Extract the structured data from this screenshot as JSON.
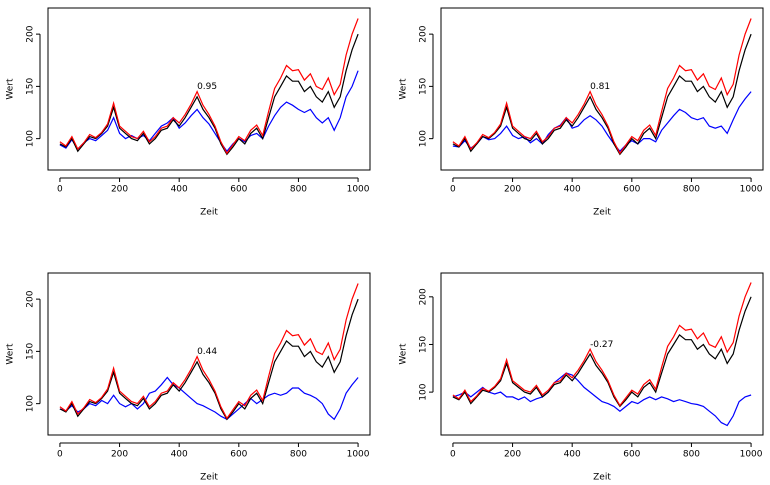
{
  "chart_data": [
    {
      "type": "line",
      "x_label": "Zeit",
      "y_label": "Wert",
      "xlim": [
        -40,
        1040
      ],
      "ylim": [
        70,
        225
      ],
      "xticks": [
        0,
        200,
        400,
        600,
        800,
        1000
      ],
      "yticks": [
        100,
        150,
        200
      ],
      "annotation": {
        "text": "0.95",
        "x": 460,
        "y": 150
      },
      "x": [
        0,
        20,
        40,
        60,
        80,
        100,
        120,
        140,
        160,
        180,
        200,
        220,
        240,
        260,
        280,
        300,
        320,
        340,
        360,
        380,
        400,
        420,
        440,
        460,
        480,
        500,
        520,
        540,
        560,
        580,
        600,
        620,
        640,
        660,
        680,
        700,
        720,
        740,
        760,
        780,
        800,
        820,
        840,
        860,
        880,
        900,
        920,
        940,
        960,
        980,
        1000
      ],
      "series": [
        {
          "color": "#0000ff",
          "values": [
            94,
            91,
            99,
            90,
            96,
            100,
            98,
            103,
            108,
            120,
            105,
            100,
            103,
            100,
            103,
            98,
            105,
            112,
            115,
            120,
            110,
            115,
            122,
            128,
            120,
            114,
            105,
            96,
            88,
            95,
            100,
            97,
            103,
            105,
            100,
            112,
            122,
            130,
            135,
            132,
            128,
            125,
            128,
            120,
            115,
            120,
            108,
            120,
            140,
            150,
            165
          ]
        },
        {
          "color": "#000000",
          "values": [
            95,
            92,
            100,
            88,
            95,
            102,
            100,
            105,
            112,
            130,
            110,
            105,
            100,
            98,
            105,
            95,
            100,
            108,
            110,
            118,
            112,
            120,
            130,
            140,
            128,
            120,
            110,
            95,
            85,
            92,
            100,
            95,
            105,
            110,
            100,
            120,
            140,
            150,
            160,
            155,
            155,
            145,
            150,
            140,
            135,
            145,
            130,
            140,
            165,
            185,
            200
          ]
        },
        {
          "color": "#ff0000",
          "values": [
            97,
            93,
            102,
            90,
            96,
            104,
            101,
            106,
            114,
            134,
            112,
            107,
            102,
            100,
            107,
            97,
            102,
            110,
            112,
            120,
            115,
            123,
            133,
            145,
            132,
            123,
            112,
            97,
            86,
            94,
            102,
            98,
            108,
            113,
            103,
            126,
            148,
            158,
            170,
            165,
            166,
            156,
            162,
            150,
            147,
            158,
            142,
            152,
            180,
            200,
            215
          ]
        }
      ]
    },
    {
      "type": "line",
      "x_label": "Zeit",
      "y_label": "Wert",
      "xlim": [
        -40,
        1040
      ],
      "ylim": [
        70,
        225
      ],
      "xticks": [
        0,
        200,
        400,
        600,
        800,
        1000
      ],
      "yticks": [
        100,
        150,
        200
      ],
      "annotation": {
        "text": "0.81",
        "x": 460,
        "y": 150
      },
      "x": [
        0,
        20,
        40,
        60,
        80,
        100,
        120,
        140,
        160,
        180,
        200,
        220,
        240,
        260,
        280,
        300,
        320,
        340,
        360,
        380,
        400,
        420,
        440,
        460,
        480,
        500,
        520,
        540,
        560,
        580,
        600,
        620,
        640,
        660,
        680,
        700,
        720,
        740,
        760,
        780,
        800,
        820,
        840,
        860,
        880,
        900,
        920,
        940,
        960,
        980,
        1000
      ],
      "series": [
        {
          "color": "#0000ff",
          "values": [
            93,
            92,
            98,
            91,
            95,
            102,
            99,
            100,
            105,
            112,
            103,
            100,
            102,
            96,
            100,
            95,
            104,
            110,
            113,
            120,
            110,
            112,
            118,
            122,
            118,
            112,
            103,
            95,
            88,
            94,
            98,
            95,
            100,
            100,
            97,
            108,
            115,
            122,
            128,
            125,
            120,
            118,
            120,
            112,
            110,
            112,
            105,
            118,
            130,
            138,
            145
          ]
        },
        {
          "color": "#000000",
          "values": [
            95,
            92,
            100,
            88,
            95,
            102,
            100,
            105,
            112,
            130,
            110,
            105,
            100,
            98,
            105,
            95,
            100,
            108,
            110,
            118,
            112,
            120,
            130,
            140,
            128,
            120,
            110,
            95,
            85,
            92,
            100,
            95,
            105,
            110,
            100,
            120,
            140,
            150,
            160,
            155,
            155,
            145,
            150,
            140,
            135,
            145,
            130,
            140,
            165,
            185,
            200
          ]
        },
        {
          "color": "#ff0000",
          "values": [
            97,
            93,
            102,
            90,
            96,
            104,
            101,
            106,
            114,
            134,
            112,
            107,
            102,
            100,
            107,
            97,
            102,
            110,
            112,
            120,
            115,
            123,
            133,
            145,
            132,
            123,
            112,
            97,
            86,
            94,
            102,
            98,
            108,
            113,
            103,
            126,
            148,
            158,
            170,
            165,
            166,
            156,
            162,
            150,
            147,
            158,
            142,
            152,
            180,
            200,
            215
          ]
        }
      ]
    },
    {
      "type": "line",
      "x_label": "Zeit",
      "y_label": "Wert",
      "xlim": [
        -40,
        1040
      ],
      "ylim": [
        70,
        225
      ],
      "xticks": [
        0,
        200,
        400,
        600,
        800,
        1000
      ],
      "yticks": [
        100,
        150,
        200
      ],
      "annotation": {
        "text": "0.44",
        "x": 460,
        "y": 150
      },
      "x": [
        0,
        20,
        40,
        60,
        80,
        100,
        120,
        140,
        160,
        180,
        200,
        220,
        240,
        260,
        280,
        300,
        320,
        340,
        360,
        380,
        400,
        420,
        440,
        460,
        480,
        500,
        520,
        540,
        560,
        580,
        600,
        620,
        640,
        660,
        680,
        700,
        720,
        740,
        760,
        780,
        800,
        820,
        840,
        860,
        880,
        900,
        920,
        940,
        960,
        980,
        1000
      ],
      "series": [
        {
          "color": "#0000ff",
          "values": [
            95,
            93,
            98,
            92,
            95,
            100,
            98,
            103,
            100,
            108,
            100,
            97,
            100,
            95,
            100,
            110,
            112,
            118,
            125,
            118,
            115,
            110,
            105,
            100,
            98,
            95,
            92,
            88,
            85,
            90,
            95,
            100,
            105,
            100,
            104,
            108,
            110,
            108,
            110,
            115,
            115,
            110,
            108,
            105,
            100,
            90,
            85,
            95,
            110,
            118,
            125
          ]
        },
        {
          "color": "#000000",
          "values": [
            95,
            92,
            100,
            88,
            95,
            102,
            100,
            105,
            112,
            130,
            110,
            105,
            100,
            98,
            105,
            95,
            100,
            108,
            110,
            118,
            112,
            120,
            130,
            140,
            128,
            120,
            110,
            95,
            85,
            92,
            100,
            95,
            105,
            110,
            100,
            120,
            140,
            150,
            160,
            155,
            155,
            145,
            150,
            140,
            135,
            145,
            130,
            140,
            165,
            185,
            200
          ]
        },
        {
          "color": "#ff0000",
          "values": [
            97,
            93,
            102,
            90,
            96,
            104,
            101,
            106,
            114,
            134,
            112,
            107,
            102,
            100,
            107,
            97,
            102,
            110,
            112,
            120,
            115,
            123,
            133,
            145,
            132,
            123,
            112,
            97,
            86,
            94,
            102,
            98,
            108,
            113,
            103,
            126,
            148,
            158,
            170,
            165,
            166,
            156,
            162,
            150,
            147,
            158,
            142,
            152,
            180,
            200,
            215
          ]
        }
      ]
    },
    {
      "type": "line",
      "x_label": "Zeit",
      "y_label": "Wert",
      "xlim": [
        -40,
        1040
      ],
      "ylim": [
        55,
        225
      ],
      "xticks": [
        0,
        200,
        400,
        600,
        800,
        1000
      ],
      "yticks": [
        100,
        150,
        200
      ],
      "annotation": {
        "text": "-0.27",
        "x": 460,
        "y": 150
      },
      "x": [
        0,
        20,
        40,
        60,
        80,
        100,
        120,
        140,
        160,
        180,
        200,
        220,
        240,
        260,
        280,
        300,
        320,
        340,
        360,
        380,
        400,
        420,
        440,
        460,
        480,
        500,
        520,
        540,
        560,
        580,
        600,
        620,
        640,
        660,
        680,
        700,
        720,
        740,
        760,
        780,
        800,
        820,
        840,
        860,
        880,
        900,
        920,
        940,
        960,
        980,
        1000
      ],
      "series": [
        {
          "color": "#0000ff",
          "values": [
            95,
            97,
            100,
            95,
            100,
            105,
            100,
            98,
            100,
            95,
            95,
            92,
            95,
            90,
            93,
            95,
            100,
            110,
            115,
            120,
            118,
            112,
            105,
            100,
            95,
            90,
            88,
            85,
            80,
            85,
            90,
            88,
            92,
            95,
            92,
            95,
            93,
            90,
            92,
            90,
            88,
            87,
            85,
            80,
            75,
            68,
            65,
            75,
            90,
            95,
            97
          ]
        },
        {
          "color": "#000000",
          "values": [
            95,
            92,
            100,
            88,
            95,
            102,
            100,
            105,
            112,
            130,
            110,
            105,
            100,
            98,
            105,
            95,
            100,
            108,
            110,
            118,
            112,
            120,
            130,
            140,
            128,
            120,
            110,
            95,
            85,
            92,
            100,
            95,
            105,
            110,
            100,
            120,
            140,
            150,
            160,
            155,
            155,
            145,
            150,
            140,
            135,
            145,
            130,
            140,
            165,
            185,
            200
          ]
        },
        {
          "color": "#ff0000",
          "values": [
            97,
            93,
            102,
            90,
            96,
            104,
            101,
            106,
            114,
            134,
            112,
            107,
            102,
            100,
            107,
            97,
            102,
            110,
            112,
            120,
            115,
            123,
            133,
            145,
            132,
            123,
            112,
            97,
            86,
            94,
            102,
            98,
            108,
            113,
            103,
            126,
            148,
            158,
            170,
            165,
            166,
            156,
            162,
            150,
            147,
            158,
            142,
            152,
            180,
            200,
            215
          ]
        }
      ]
    }
  ]
}
